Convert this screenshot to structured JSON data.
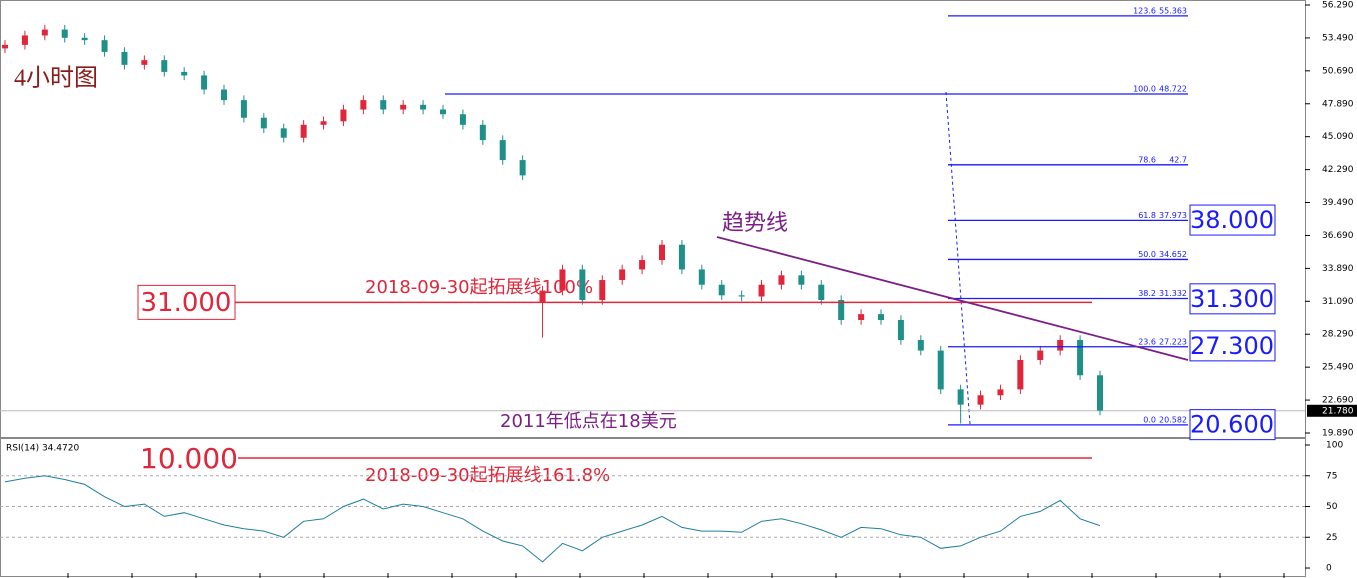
{
  "chart_data": [
    {
      "type": "candlestick",
      "title": "4小时图",
      "categories": [
        null,
        null,
        null,
        null,
        null,
        null,
        null,
        null,
        null,
        null,
        null,
        null,
        null,
        null,
        null,
        null,
        null,
        null,
        null,
        null,
        null,
        null,
        null,
        null,
        null,
        null,
        null,
        null,
        null,
        null,
        null,
        null,
        null,
        null,
        null,
        null,
        null,
        null,
        null,
        null,
        null,
        null,
        null,
        null,
        null,
        null,
        null,
        null,
        null,
        null,
        null,
        null,
        null,
        null,
        null,
        null
      ],
      "open": [
        52.6,
        52.9,
        53.7,
        54.2,
        53.5,
        53.3,
        52.3,
        51.2,
        51.6,
        50.6,
        50.3,
        49.1,
        48.2,
        46.7,
        45.8,
        45.0,
        46.1,
        46.4,
        47.4,
        48.2,
        47.4,
        47.8,
        47.4,
        47.0,
        46.1,
        44.8,
        43.1,
        31.0,
        32.0,
        33.8,
        31.2,
        32.9,
        33.8,
        34.6,
        35.9,
        33.8,
        32.5,
        31.6,
        31.5,
        32.5,
        33.3,
        32.5,
        31.2,
        29.5,
        30.0,
        29.5,
        27.8,
        26.9,
        23.6,
        22.3,
        23.1,
        23.6,
        26.1,
        26.9,
        27.8,
        24.8
      ],
      "high": [
        53.3,
        54.1,
        54.6,
        54.6,
        53.9,
        53.7,
        52.7,
        52.0,
        52.0,
        51.0,
        50.7,
        49.5,
        48.6,
        47.1,
        46.2,
        46.5,
        46.8,
        47.8,
        48.6,
        48.6,
        48.2,
        48.2,
        47.8,
        47.4,
        46.5,
        45.2,
        43.5,
        32.4,
        34.2,
        34.2,
        33.3,
        34.2,
        35.0,
        36.3,
        36.3,
        34.2,
        32.9,
        32.0,
        32.9,
        33.7,
        33.7,
        32.9,
        31.6,
        30.4,
        30.4,
        29.9,
        28.2,
        27.3,
        24.0,
        23.5,
        24.0,
        26.5,
        27.3,
        28.2,
        28.2,
        25.2
      ],
      "low": [
        52.2,
        52.5,
        53.3,
        53.1,
        52.9,
        51.9,
        50.8,
        50.8,
        50.2,
        49.9,
        48.7,
        47.8,
        46.3,
        45.4,
        44.6,
        44.6,
        45.7,
        46.0,
        47.0,
        47.0,
        47.0,
        47.0,
        46.6,
        45.7,
        44.4,
        42.7,
        41.4,
        28.0,
        31.6,
        30.8,
        30.8,
        32.5,
        33.4,
        34.2,
        33.4,
        32.1,
        31.2,
        31.1,
        31.1,
        32.1,
        32.1,
        30.8,
        29.1,
        29.1,
        29.1,
        27.4,
        26.5,
        23.2,
        20.7,
        21.9,
        22.7,
        23.2,
        25.7,
        26.5,
        24.4,
        21.4
      ],
      "close": [
        52.9,
        53.7,
        54.2,
        53.5,
        53.3,
        52.3,
        51.2,
        51.6,
        50.6,
        50.3,
        49.1,
        48.2,
        46.7,
        45.8,
        45.0,
        46.1,
        46.4,
        47.4,
        48.2,
        47.4,
        47.8,
        47.4,
        47.0,
        46.1,
        44.8,
        43.1,
        41.8,
        32.0,
        33.8,
        31.2,
        32.9,
        33.8,
        34.6,
        35.9,
        33.8,
        32.5,
        31.6,
        31.5,
        32.5,
        33.3,
        32.5,
        31.2,
        29.5,
        30.0,
        29.5,
        27.8,
        26.9,
        23.6,
        22.3,
        23.1,
        23.6,
        26.1,
        26.9,
        27.8,
        24.8,
        21.8
      ],
      "up_color": "#e0263a",
      "down_color": "#1f8f8a",
      "ylim": [
        19.55,
        56.715
      ],
      "yticks": [
        {
          "value": 19.89,
          "label": "19.890"
        },
        {
          "value": 22.69,
          "label": "22.690"
        },
        {
          "value": 25.49,
          "label": "25.490"
        },
        {
          "value": 28.29,
          "label": "28.290"
        },
        {
          "value": 31.09,
          "label": "31.090"
        },
        {
          "value": 33.89,
          "label": "33.890"
        },
        {
          "value": 36.69,
          "label": "36.690"
        },
        {
          "value": 39.49,
          "label": "39.490"
        },
        {
          "value": 42.29,
          "label": "42.290"
        },
        {
          "value": 45.09,
          "label": "45.090"
        },
        {
          "value": 47.89,
          "label": "47.890"
        },
        {
          "value": 50.69,
          "label": "50.690"
        },
        {
          "value": 53.49,
          "label": "53.490"
        },
        {
          "value": 56.29,
          "label": "56.290"
        }
      ],
      "last_price": {
        "value": 21.78,
        "label": "21.780"
      },
      "fib_levels": [
        {
          "ratio": "123.6",
          "price": 55.363
        },
        {
          "ratio": "100.0",
          "price": 48.722
        },
        {
          "ratio": "78.6",
          "price": 42.7
        },
        {
          "ratio": "61.8",
          "price": 37.973
        },
        {
          "ratio": "50.0",
          "price": 34.652
        },
        {
          "ratio": "38.2",
          "price": 31.332
        },
        {
          "ratio": "23.6",
          "price": 27.223
        },
        {
          "ratio": "0.0",
          "price": 20.582
        }
      ],
      "boxes": [
        {
          "value": 38,
          "label": "38.000"
        },
        {
          "value": 31.3,
          "label": "31.300"
        },
        {
          "value": 27.3,
          "label": "27.300"
        },
        {
          "value": 20.6,
          "label": "20.600"
        }
      ],
      "extension_line": {
        "value": 31,
        "label": "31.000",
        "text": "2018-09-30起拓展线100%"
      },
      "trendline": {
        "text": "趋势线",
        "start": 36.56,
        "end": 26.1
      },
      "note": "2011年低点在18美元"
    },
    {
      "type": "line",
      "title": "RSI(14) 34.4720",
      "series": [
        {
          "name": "RSI(14)",
          "color": "#1f7fa0",
          "values": [
            70,
            73,
            75,
            72,
            68,
            58,
            50,
            52,
            42,
            45,
            40,
            35,
            32,
            30,
            25,
            38,
            40,
            50,
            56,
            48,
            52,
            50,
            45,
            40,
            30,
            22,
            18,
            5,
            20,
            14,
            25,
            30,
            35,
            42,
            33,
            30,
            30,
            29,
            38,
            40,
            36,
            31,
            25,
            33,
            32,
            27,
            25,
            16,
            18,
            25,
            30,
            42,
            46,
            55,
            40,
            34.472
          ]
        }
      ],
      "ylim": [
        -7.3,
        105.7
      ],
      "yticks": [
        0,
        25,
        50,
        75,
        100
      ],
      "target": {
        "label": "10.000",
        "text": "2018-09-30起拓展线161.8%"
      }
    }
  ]
}
